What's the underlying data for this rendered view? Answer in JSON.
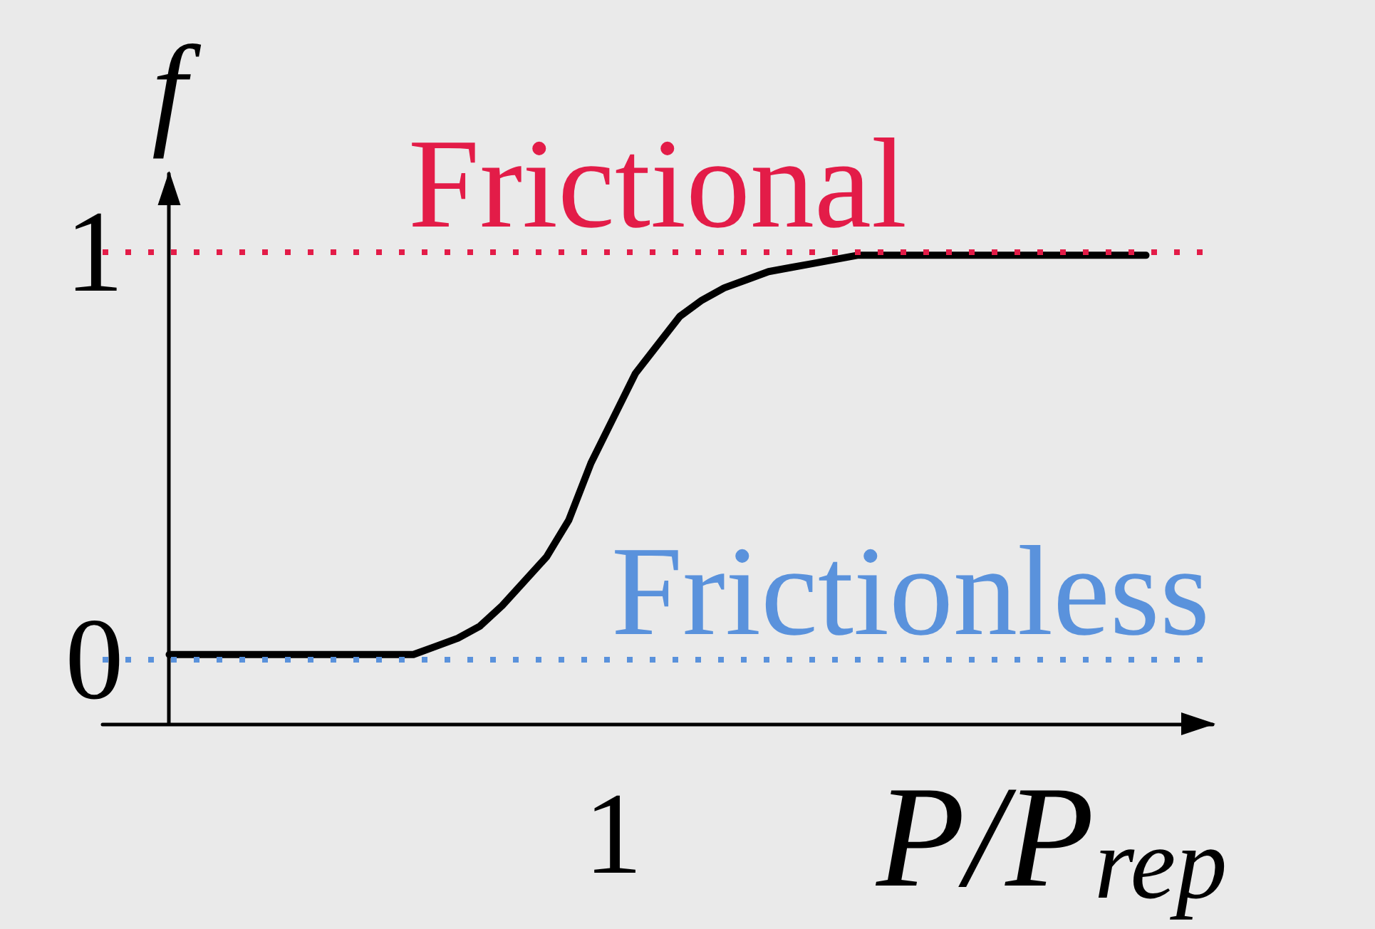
{
  "chart_data": {
    "type": "line",
    "xlabel": "P/P$_{rep}$",
    "ylabel": "f",
    "categories": [
      null,
      null,
      null,
      null,
      null,
      null,
      null,
      null,
      null,
      null,
      null,
      null,
      null,
      null,
      null,
      null,
      null,
      null,
      null,
      null,
      null,
      null,
      null,
      "1",
      null,
      null,
      null,
      null,
      null,
      null,
      null,
      null,
      null,
      null,
      null,
      null,
      null,
      null,
      null,
      null,
      null,
      null,
      null,
      null,
      null,
      null,
      null,
      null,
      null,
      null,
      null
    ],
    "series": [
      {
        "color": "#000000",
        "values": [
          null,
          null,
          null,
          0.01,
          0.01,
          0.01,
          0.01,
          0.01,
          0.01,
          0.01,
          0.01,
          0.01,
          0.01,
          0.01,
          0.01,
          0.03,
          0.05,
          0.08,
          0.13,
          0.19,
          0.25,
          0.34,
          0.48,
          0.59,
          0.7,
          0.77,
          0.84,
          0.88,
          0.91,
          0.93,
          0.95,
          0.96,
          0.97,
          0.98,
          0.99,
          0.99,
          0.99,
          0.99,
          0.99,
          0.99,
          0.99,
          0.99,
          0.99,
          0.99,
          0.99,
          0.99,
          0.99,
          0.99,
          null,
          null,
          null
        ]
      }
    ],
    "ylim": [
      -0.16,
      1.19
    ],
    "yticks": [
      0,
      1
    ],
    "marker": "none",
    "ref_lines": [
      {
        "axis": "y",
        "value": 1,
        "label": "Frictional",
        "color": "#e31c48",
        "line_style": "dotted"
      },
      {
        "axis": "y",
        "value": 0,
        "label": "Frictionless",
        "color": "#5a92dc",
        "line_style": "dotted"
      }
    ]
  }
}
